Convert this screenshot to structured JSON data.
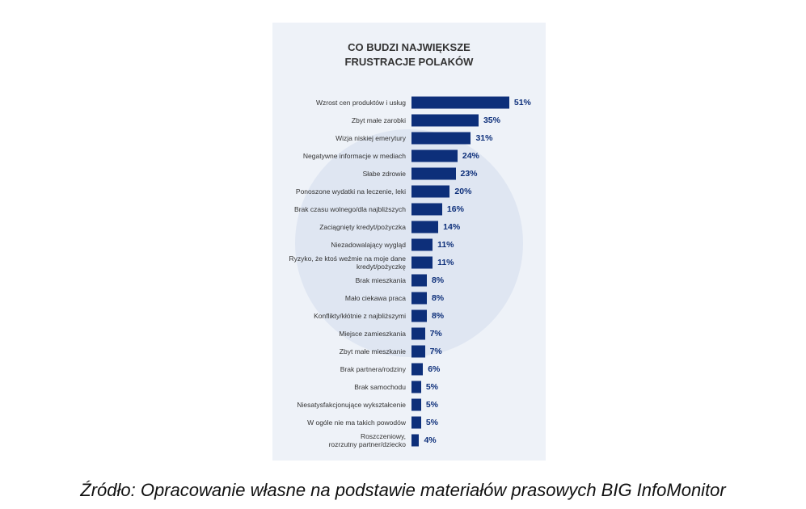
{
  "chart_data": {
    "type": "bar",
    "orientation": "horizontal",
    "title": "CO BUDZI NAJWIĘKSZE\nFRUSTRACJE POLAKÓW",
    "categories": [
      "Wzrost cen produktów i usług",
      "Zbyt małe zarobki",
      "Wizja niskiej emerytury",
      "Negatywne informacje w mediach",
      "Słabe zdrowie",
      "Ponoszone wydatki na leczenie, leki",
      "Brak czasu wolnego/dla najbliższych",
      "Zaciągnięty kredyt/pożyczka",
      "Niezadowalający wygląd",
      "Ryzyko, że ktoś weźmie na moje dane\nkredyt/pożyczkę",
      "Brak mieszkania",
      "Mało ciekawa praca",
      "Konflikty/kłótnie z najbliższymi",
      "Miejsce zamieszkania",
      "Zbyt małe mieszkanie",
      "Brak partnera/rodziny",
      "Brak samochodu",
      "Niesatysfakcjonujące wykształcenie",
      "W ogóle nie ma takich powodów",
      "Roszczeniowy,\nrozrzutny partner/dziecko"
    ],
    "values": [
      51,
      35,
      31,
      24,
      23,
      20,
      16,
      14,
      11,
      11,
      8,
      8,
      8,
      7,
      7,
      6,
      5,
      5,
      5,
      4
    ],
    "value_labels": [
      "51%",
      "35%",
      "31%",
      "24%",
      "23%",
      "20%",
      "16%",
      "14%",
      "11%",
      "11%",
      "8%",
      "8%",
      "8%",
      "7%",
      "7%",
      "6%",
      "5%",
      "5%",
      "5%",
      "4%"
    ],
    "color": "#0d2f7a"
  },
  "source": "Źródło: Opracowanie własne na podstawie materiałów prasowych BIG InfoMonitor"
}
